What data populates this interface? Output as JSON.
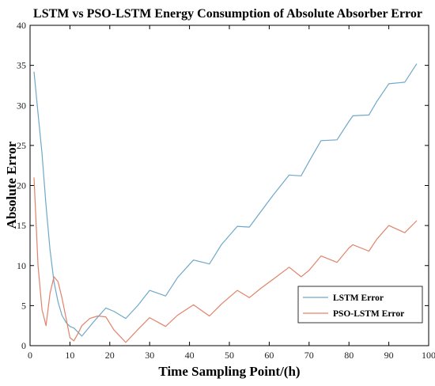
{
  "chart_data": {
    "type": "line",
    "title": "LSTM vs PSO-LSTM Energy Consumption of Absolute Absorber Error",
    "xlabel": "Time Sampling Point/(h)",
    "ylabel": "Absolute Error",
    "xlim": [
      0,
      100
    ],
    "ylim": [
      0,
      40
    ],
    "xticks": [
      "0",
      "10",
      "20",
      "30",
      "40",
      "50",
      "60",
      "70",
      "80",
      "90",
      "100"
    ],
    "yticks": [
      "0",
      "5",
      "10",
      "15",
      "20",
      "25",
      "30",
      "35",
      "40"
    ],
    "grid": false,
    "legend_position": "bottom-right",
    "series": [
      {
        "name": "LSTM Error",
        "color": "#6fa8c8",
        "x": [
          1,
          2,
          3,
          4,
          5,
          6,
          7,
          8,
          9,
          10,
          11,
          12,
          13,
          14,
          16,
          19,
          21,
          24,
          27,
          30,
          34,
          37,
          41,
          45,
          48,
          52,
          55,
          58,
          61,
          65,
          68,
          70,
          73,
          77,
          80,
          81,
          85,
          87,
          90,
          94,
          97
        ],
        "y": [
          34.2,
          29,
          24,
          17.5,
          12,
          8,
          5.5,
          3.8,
          2.9,
          2.4,
          2.2,
          1.7,
          1.2,
          1.8,
          3,
          4.7,
          4.3,
          3.4,
          5,
          6.9,
          6.2,
          8.5,
          10.7,
          10.2,
          12.6,
          14.9,
          14.8,
          16.8,
          18.8,
          21.3,
          21.2,
          23,
          25.6,
          25.7,
          28,
          28.7,
          28.8,
          30.5,
          32.7,
          32.9,
          35.2
        ]
      },
      {
        "name": "PSO-LSTM Error",
        "color": "#e0836a",
        "x": [
          1,
          2,
          3,
          4,
          5,
          6,
          7,
          8,
          9,
          10,
          11,
          12,
          13,
          15,
          17,
          19,
          21,
          24,
          27,
          30,
          34,
          37,
          41,
          45,
          48,
          52,
          55,
          58,
          61,
          65,
          68,
          70,
          73,
          77,
          80,
          81,
          85,
          87,
          90,
          94,
          97
        ],
        "y": [
          21,
          10,
          4.5,
          2.5,
          6.5,
          8.6,
          8,
          6,
          3.5,
          1,
          0.6,
          1.5,
          2.5,
          3.4,
          3.7,
          3.6,
          2,
          0.4,
          2,
          3.5,
          2.4,
          3.8,
          5.1,
          3.7,
          5.2,
          6.9,
          6,
          7.2,
          8.3,
          9.8,
          8.6,
          9.4,
          11.2,
          10.4,
          12.2,
          12.6,
          11.8,
          13.3,
          15,
          14.1,
          15.6
        ]
      }
    ]
  }
}
